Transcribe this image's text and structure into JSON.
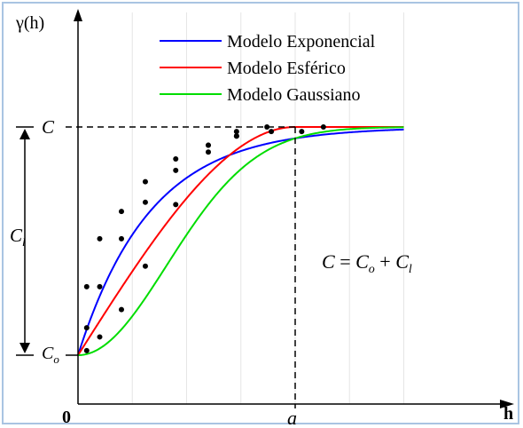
{
  "axes": {
    "y_label": "γ(h)",
    "x_label": "h",
    "origin_label": "0",
    "x_tick_label": "a"
  },
  "levels": {
    "sill_label": "C",
    "nugget_label_main": "C",
    "nugget_label_sub": "o",
    "partial_sill_label_main": "C",
    "partial_sill_label_sub": "l"
  },
  "equation": {
    "lhs": "C",
    "equals": " = ",
    "term1_main": "C",
    "term1_sub": "o",
    "plus": " + ",
    "term2_main": "C",
    "term2_sub": "l"
  },
  "legend": [
    {
      "label": "Modelo Exponencial",
      "color": "#0000ff"
    },
    {
      "label": "Modelo Esférico",
      "color": "#ff0000"
    },
    {
      "label": "Modelo Gaussiano",
      "color": "#00dd00"
    }
  ],
  "model_params": {
    "nugget": 0.0,
    "sill": 1.0,
    "range_a": 1.0,
    "h_max": 1.5
  },
  "sample_points": {
    "exponential": [
      [
        0.04,
        0.3
      ],
      [
        0.1,
        0.51
      ],
      [
        0.2,
        0.63
      ],
      [
        0.31,
        0.76
      ],
      [
        0.45,
        0.86
      ],
      [
        0.6,
        0.92
      ],
      [
        0.73,
        0.96
      ]
    ],
    "spherical": [
      [
        0.04,
        0.12
      ],
      [
        0.1,
        0.3
      ],
      [
        0.2,
        0.51
      ],
      [
        0.31,
        0.67
      ],
      [
        0.45,
        0.81
      ],
      [
        0.6,
        0.92
      ],
      [
        0.73,
        0.98
      ],
      [
        0.87,
        1.0
      ]
    ],
    "gaussian": [
      [
        0.04,
        0.02
      ],
      [
        0.1,
        0.08
      ],
      [
        0.2,
        0.2
      ],
      [
        0.31,
        0.39
      ],
      [
        0.45,
        0.66
      ],
      [
        0.6,
        0.89
      ],
      [
        0.73,
        0.96
      ],
      [
        0.89,
        0.98
      ],
      [
        1.03,
        0.98
      ],
      [
        1.13,
        1.0
      ]
    ]
  }
}
